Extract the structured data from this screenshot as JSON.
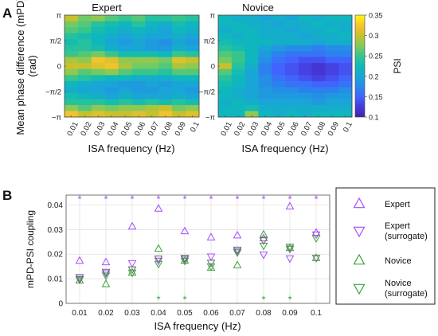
{
  "panels": {
    "a": {
      "letter": "A"
    },
    "b": {
      "letter": "B"
    }
  },
  "colors": {
    "expert": "#a64dff",
    "novice": "#3aa43a",
    "surrogate_gray": "#6a6a6a"
  },
  "chart_data": [
    {
      "type": "heatmap",
      "title": "Expert",
      "xlabel": "ISA frequency (Hz)",
      "ylabel": "Mean phase difference (mPD)\n(rad)",
      "x_ticks": [
        "0.01",
        "0.02",
        "0.03",
        "0.04",
        "0.05",
        "0.06",
        "0.07",
        "0.08",
        "0.09",
        "0.1"
      ],
      "y_ticks": [
        "π",
        "π/2",
        "0",
        "−π/2",
        "−π"
      ],
      "colormap": "parula",
      "clim": [
        0.1,
        0.35
      ],
      "values": [
        [
          0.3,
          0.27,
          0.28,
          0.26,
          0.25,
          0.26,
          0.24,
          0.24,
          0.25,
          0.24
        ],
        [
          0.27,
          0.26,
          0.24,
          0.23,
          0.22,
          0.24,
          0.22,
          0.21,
          0.23,
          0.22
        ],
        [
          0.26,
          0.25,
          0.23,
          0.22,
          0.21,
          0.22,
          0.21,
          0.2,
          0.22,
          0.21
        ],
        [
          0.24,
          0.23,
          0.22,
          0.21,
          0.2,
          0.21,
          0.2,
          0.2,
          0.21,
          0.2
        ],
        [
          0.23,
          0.24,
          0.22,
          0.2,
          0.19,
          0.2,
          0.19,
          0.18,
          0.2,
          0.19
        ],
        [
          0.24,
          0.24,
          0.23,
          0.21,
          0.2,
          0.2,
          0.19,
          0.19,
          0.21,
          0.2
        ],
        [
          0.25,
          0.26,
          0.27,
          0.25,
          0.23,
          0.23,
          0.23,
          0.22,
          0.25,
          0.24
        ],
        [
          0.29,
          0.28,
          0.32,
          0.31,
          0.28,
          0.28,
          0.28,
          0.27,
          0.31,
          0.3
        ],
        [
          0.3,
          0.3,
          0.31,
          0.32,
          0.29,
          0.27,
          0.27,
          0.26,
          0.29,
          0.28
        ],
        [
          0.28,
          0.26,
          0.27,
          0.28,
          0.26,
          0.25,
          0.25,
          0.24,
          0.26,
          0.26
        ],
        [
          0.25,
          0.24,
          0.23,
          0.22,
          0.22,
          0.21,
          0.21,
          0.21,
          0.22,
          0.22
        ],
        [
          0.22,
          0.21,
          0.2,
          0.2,
          0.19,
          0.19,
          0.2,
          0.19,
          0.2,
          0.2
        ],
        [
          0.21,
          0.2,
          0.2,
          0.19,
          0.2,
          0.19,
          0.19,
          0.2,
          0.2,
          0.19
        ],
        [
          0.23,
          0.22,
          0.21,
          0.2,
          0.21,
          0.2,
          0.2,
          0.2,
          0.21,
          0.2
        ],
        [
          0.24,
          0.24,
          0.24,
          0.23,
          0.24,
          0.23,
          0.24,
          0.23,
          0.24,
          0.23
        ],
        [
          0.28,
          0.26,
          0.28,
          0.27,
          0.28,
          0.28,
          0.29,
          0.3,
          0.27,
          0.28
        ],
        [
          0.32,
          0.3,
          0.31,
          0.3,
          0.3,
          0.31,
          0.3,
          0.32,
          0.3,
          0.31
        ]
      ]
    },
    {
      "type": "heatmap",
      "title": "Novice",
      "xlabel": "ISA frequency (Hz)",
      "x_ticks": [
        "0.01",
        "0.02",
        "0.03",
        "0.04",
        "0.05",
        "0.06",
        "0.07",
        "0.08",
        "0.09",
        "0.1"
      ],
      "y_ticks": [
        "π",
        "π/2",
        "0",
        "−π/2",
        "−π"
      ],
      "colormap": "parula",
      "clim": [
        0.1,
        0.35
      ],
      "colorbar": {
        "label": "PSI",
        "ticks": [
          "0.35",
          "0.3",
          "0.25",
          "0.2",
          "0.15",
          "0.1"
        ]
      },
      "values": [
        [
          0.22,
          0.21,
          0.21,
          0.2,
          0.21,
          0.2,
          0.22,
          0.21,
          0.22,
          0.22
        ],
        [
          0.22,
          0.22,
          0.21,
          0.21,
          0.2,
          0.21,
          0.21,
          0.22,
          0.21,
          0.21
        ],
        [
          0.21,
          0.22,
          0.22,
          0.21,
          0.21,
          0.2,
          0.21,
          0.21,
          0.22,
          0.21
        ],
        [
          0.22,
          0.21,
          0.22,
          0.21,
          0.21,
          0.21,
          0.2,
          0.21,
          0.21,
          0.22
        ],
        [
          0.23,
          0.22,
          0.22,
          0.22,
          0.21,
          0.21,
          0.21,
          0.2,
          0.21,
          0.21
        ],
        [
          0.24,
          0.23,
          0.22,
          0.2,
          0.19,
          0.18,
          0.18,
          0.17,
          0.18,
          0.18
        ],
        [
          0.26,
          0.25,
          0.22,
          0.19,
          0.17,
          0.16,
          0.16,
          0.16,
          0.17,
          0.17
        ],
        [
          0.27,
          0.25,
          0.22,
          0.18,
          0.16,
          0.15,
          0.14,
          0.14,
          0.15,
          0.15
        ],
        [
          0.3,
          0.24,
          0.21,
          0.17,
          0.15,
          0.14,
          0.13,
          0.12,
          0.13,
          0.14
        ],
        [
          0.26,
          0.23,
          0.2,
          0.17,
          0.15,
          0.14,
          0.13,
          0.12,
          0.13,
          0.14
        ],
        [
          0.24,
          0.22,
          0.2,
          0.18,
          0.16,
          0.15,
          0.14,
          0.13,
          0.14,
          0.15
        ],
        [
          0.23,
          0.22,
          0.2,
          0.18,
          0.17,
          0.16,
          0.16,
          0.15,
          0.15,
          0.16
        ],
        [
          0.22,
          0.21,
          0.2,
          0.19,
          0.18,
          0.18,
          0.17,
          0.17,
          0.17,
          0.18
        ],
        [
          0.22,
          0.21,
          0.2,
          0.19,
          0.19,
          0.19,
          0.19,
          0.18,
          0.19,
          0.19
        ],
        [
          0.21,
          0.22,
          0.21,
          0.2,
          0.2,
          0.2,
          0.2,
          0.19,
          0.2,
          0.2
        ],
        [
          0.22,
          0.22,
          0.23,
          0.21,
          0.21,
          0.21,
          0.21,
          0.21,
          0.21,
          0.21
        ],
        [
          0.22,
          0.22,
          0.28,
          0.22,
          0.21,
          0.22,
          0.21,
          0.22,
          0.22,
          0.22
        ]
      ]
    },
    {
      "type": "scatter",
      "xlabel": "ISA frequency (Hz)",
      "ylabel": "mPD-PSI coupling",
      "x_ticks": [
        "0.01",
        "0.02",
        "0.03",
        "0.04",
        "0.05",
        "0.06",
        "0.07",
        "0.08",
        "0.09",
        "0.1"
      ],
      "y_ticks": [
        "0",
        "0.01",
        "0.02",
        "0.03",
        "0.04"
      ],
      "ylim": [
        0,
        0.044
      ],
      "grid": true,
      "legend_position": "right",
      "series": [
        {
          "name": "Expert",
          "marker": "triangle-up",
          "color": "#a64dff",
          "values": [
            0.0173,
            0.0167,
            0.0312,
            0.0385,
            0.0293,
            0.0268,
            0.0276,
            0.0265,
            0.0394,
            0.0287
          ]
        },
        {
          "name": "Expert\n(surrogate)",
          "marker": "triangle-down",
          "color": "#a64dff",
          "values": [
            0.0107,
            0.0122,
            0.0163,
            0.0173,
            0.018,
            0.019,
            0.0212,
            0.0198,
            0.0183,
            0.028
          ]
        },
        {
          "name": "Novice",
          "marker": "triangle-up",
          "color": "#3aa43a",
          "values": [
            0.0093,
            0.0078,
            0.0125,
            0.0222,
            0.0173,
            0.0145,
            0.0155,
            0.028,
            0.0225,
            0.0184
          ]
        },
        {
          "name": "Novice\n(surrogate)",
          "marker": "triangle-down",
          "color": "#3aa43a",
          "values": [
            0.01,
            0.0113,
            0.0125,
            0.016,
            0.0173,
            0.015,
            0.0207,
            0.0234,
            0.023,
            0.0265
          ]
        },
        {
          "name": "",
          "marker": "triangle-down",
          "color": "#6a6a6a",
          "values": [
            0.0097,
            0.0128,
            0.0138,
            0.0182,
            0.0185,
            0.0165,
            0.0218,
            0.0256,
            0.0222,
            0.0185
          ]
        }
      ],
      "significance": {
        "expert": {
          "symbol": "*",
          "color": "#a64dff",
          "y": 0.0425,
          "x_index": [
            0,
            1,
            2,
            3,
            4,
            5,
            6,
            7,
            8,
            9
          ]
        },
        "novice": {
          "symbol": "*",
          "color": "#3aa43a",
          "y": 0.0018,
          "x_index": [
            3,
            4,
            7,
            8
          ]
        }
      }
    }
  ]
}
